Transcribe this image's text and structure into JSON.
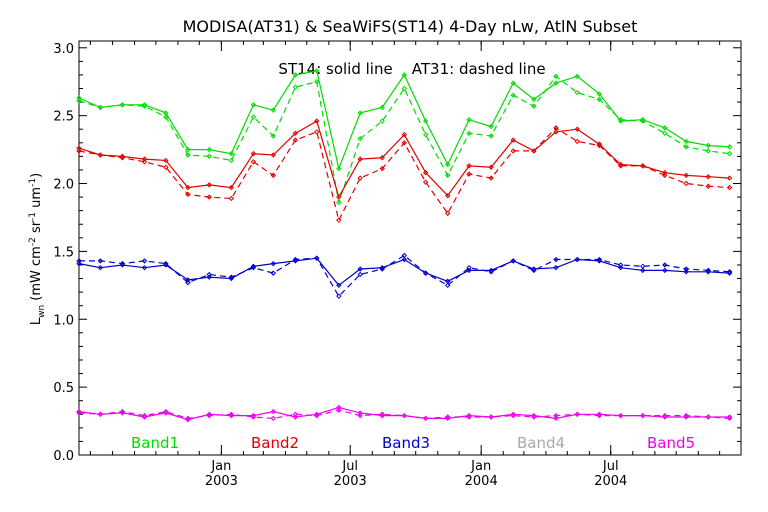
{
  "chart_data": {
    "type": "line",
    "title": "MODISA(AT31) & SeaWiFS(ST14) 4-Day nLw, AtlN Subset",
    "annotation": "ST14: solid line    AT31: dashed line",
    "ylabel": "L_wn (mW cm^-2 sr^-1 um^-1)",
    "ylabel_main": "L",
    "ylabel_sub": "wn",
    "ylabel_rest1": " (mW cm",
    "ylabel_sup1": "-2",
    "ylabel_rest2": " sr",
    "ylabel_sup2": "-1",
    "ylabel_rest3": " um",
    "ylabel_sup3": "-1",
    "ylabel_rest4": ")",
    "ylim": [
      0.0,
      3.05
    ],
    "yticks": [
      "0.0",
      "0.5",
      "1.0",
      "1.5",
      "2.0",
      "2.5",
      "3.0"
    ],
    "ytick_values": [
      0.0,
      0.5,
      1.0,
      1.5,
      2.0,
      2.5,
      3.0
    ],
    "xlim": [
      "2002-06-15",
      "2004-12-31"
    ],
    "xticks": [
      {
        "date": "2003-01-01",
        "month": "Jan",
        "year": "2003"
      },
      {
        "date": "2003-07-01",
        "month": "Jul",
        "year": "2003"
      },
      {
        "date": "2004-01-01",
        "month": "Jan",
        "year": "2004"
      },
      {
        "date": "2004-07-01",
        "month": "Jul",
        "year": "2004"
      }
    ],
    "x": [
      "2002-06-15",
      "2002-07-15",
      "2002-08-15",
      "2002-09-15",
      "2002-10-15",
      "2002-11-15",
      "2002-12-15",
      "2003-01-15",
      "2003-02-15",
      "2003-03-15",
      "2003-04-15",
      "2003-05-15",
      "2003-06-15",
      "2003-07-15",
      "2003-08-15",
      "2003-09-15",
      "2003-10-15",
      "2003-11-15",
      "2003-12-15",
      "2004-01-15",
      "2004-02-15",
      "2004-03-15",
      "2004-04-15",
      "2004-05-15",
      "2004-06-15",
      "2004-07-15",
      "2004-08-15",
      "2004-09-15",
      "2004-10-15",
      "2004-11-15",
      "2004-12-15"
    ],
    "series": [
      {
        "name": "Band1",
        "color": "#00dd00",
        "solid": [
          2.63,
          2.56,
          2.58,
          2.58,
          2.52,
          2.25,
          2.25,
          2.22,
          2.58,
          2.54,
          2.8,
          2.83,
          2.11,
          2.52,
          2.56,
          2.8,
          2.46,
          2.14,
          2.47,
          2.42,
          2.74,
          2.62,
          2.74,
          2.79,
          2.66,
          2.46,
          2.47,
          2.41,
          2.31,
          2.28,
          2.27
        ],
        "dashed": [
          2.61,
          2.56,
          2.58,
          2.57,
          2.49,
          2.21,
          2.2,
          2.17,
          2.49,
          2.35,
          2.71,
          2.75,
          1.86,
          2.33,
          2.46,
          2.7,
          2.36,
          2.06,
          2.37,
          2.35,
          2.65,
          2.57,
          2.79,
          2.67,
          2.62,
          2.47,
          2.46,
          2.37,
          2.27,
          2.24,
          2.22
        ]
      },
      {
        "name": "Band2",
        "color": "#e00000",
        "solid": [
          2.26,
          2.21,
          2.2,
          2.18,
          2.17,
          1.97,
          1.99,
          1.97,
          2.22,
          2.21,
          2.37,
          2.46,
          1.9,
          2.18,
          2.19,
          2.36,
          2.08,
          1.91,
          2.13,
          2.12,
          2.32,
          2.24,
          2.38,
          2.4,
          2.29,
          2.14,
          2.13,
          2.08,
          2.06,
          2.05,
          2.04
        ],
        "dashed": [
          2.24,
          2.21,
          2.19,
          2.16,
          2.12,
          1.92,
          1.9,
          1.89,
          2.16,
          2.06,
          2.32,
          2.38,
          1.73,
          2.04,
          2.11,
          2.3,
          2.01,
          1.78,
          2.07,
          2.04,
          2.24,
          2.24,
          2.41,
          2.31,
          2.28,
          2.13,
          2.13,
          2.06,
          2.0,
          1.98,
          1.97
        ]
      },
      {
        "name": "Band3",
        "color": "#0000cc",
        "solid": [
          1.41,
          1.38,
          1.4,
          1.38,
          1.4,
          1.29,
          1.31,
          1.3,
          1.39,
          1.41,
          1.43,
          1.45,
          1.25,
          1.37,
          1.38,
          1.44,
          1.34,
          1.28,
          1.36,
          1.36,
          1.43,
          1.37,
          1.38,
          1.44,
          1.43,
          1.38,
          1.36,
          1.36,
          1.35,
          1.35,
          1.34
        ],
        "dashed": [
          1.43,
          1.43,
          1.41,
          1.43,
          1.41,
          1.27,
          1.33,
          1.31,
          1.38,
          1.34,
          1.44,
          1.45,
          1.17,
          1.33,
          1.37,
          1.47,
          1.34,
          1.25,
          1.38,
          1.35,
          1.43,
          1.36,
          1.44,
          1.44,
          1.44,
          1.4,
          1.39,
          1.4,
          1.37,
          1.36,
          1.35
        ]
      },
      {
        "name": "Band4",
        "color": "#aaaaaa",
        "solid": [],
        "dashed": []
      },
      {
        "name": "Band5",
        "color": "#ee00ee",
        "solid": [
          0.32,
          0.3,
          0.31,
          0.28,
          0.31,
          0.26,
          0.3,
          0.29,
          0.29,
          0.32,
          0.28,
          0.3,
          0.35,
          0.31,
          0.29,
          0.29,
          0.27,
          0.27,
          0.29,
          0.28,
          0.3,
          0.29,
          0.27,
          0.3,
          0.3,
          0.29,
          0.29,
          0.28,
          0.28,
          0.28,
          0.28
        ],
        "dashed": [
          0.31,
          0.3,
          0.32,
          0.29,
          0.32,
          0.27,
          0.29,
          0.3,
          0.28,
          0.27,
          0.3,
          0.29,
          0.33,
          0.29,
          0.3,
          0.29,
          0.27,
          0.28,
          0.28,
          0.28,
          0.29,
          0.28,
          0.29,
          0.3,
          0.29,
          0.29,
          0.29,
          0.29,
          0.29,
          0.28,
          0.27
        ]
      }
    ],
    "grid": false,
    "legend_placement": "bottom-inside"
  }
}
